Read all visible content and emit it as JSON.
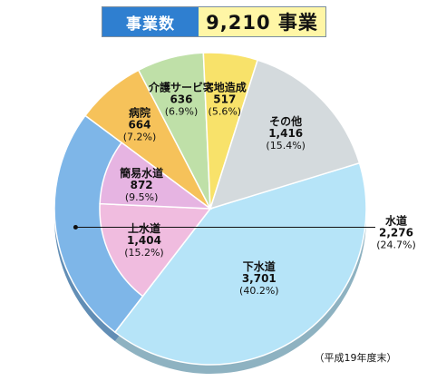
{
  "header": {
    "label": "事業数",
    "value": "9,210 事業"
  },
  "note": "（平成19年度末）",
  "chart_data": {
    "type": "pie",
    "total": 9210,
    "slices": [
      {
        "name": "下水道",
        "value": 3701,
        "value_label": "3,701",
        "percent": "(40.2%)",
        "color": "#b6e4f8"
      },
      {
        "name": "水道",
        "value": 2276,
        "value_label": "2,276",
        "percent": "(24.7%)",
        "color": "#7eb6e8"
      },
      {
        "name": "病院",
        "value": 664,
        "value_label": "664",
        "percent": "(7.2%)",
        "color": "#f6c25a"
      },
      {
        "name": "介護サービス",
        "value": 636,
        "value_label": "636",
        "percent": "(6.9%)",
        "color": "#bfe0a8"
      },
      {
        "name": "宅地造成",
        "value": 517,
        "value_label": "517",
        "percent": "(5.6%)",
        "color": "#f8e26a"
      },
      {
        "name": "その他",
        "value": 1416,
        "value_label": "1,416",
        "percent": "(15.4%)",
        "color": "#d4dadd"
      }
    ],
    "sub_slices": [
      {
        "name": "上水道",
        "value": 1404,
        "value_label": "1,404",
        "percent": "(15.2%)",
        "color": "#f0bcdf"
      },
      {
        "name": "簡易水道",
        "value": 872,
        "value_label": "872",
        "percent": "(9.5%)",
        "color": "#e6b4e2"
      }
    ]
  }
}
